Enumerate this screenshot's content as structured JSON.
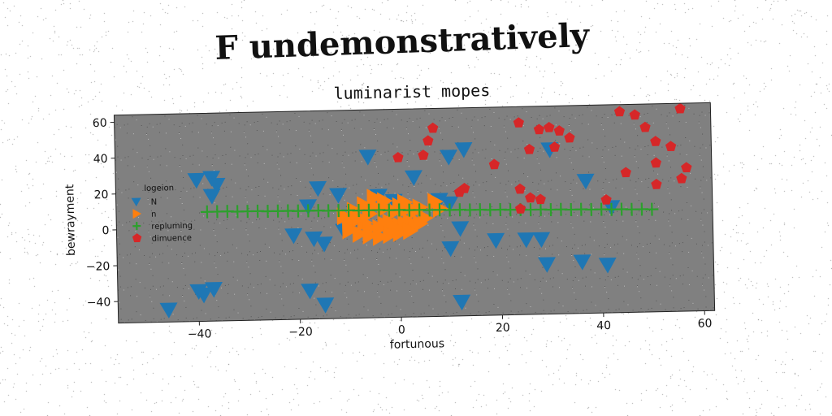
{
  "figure": {
    "suptitle": "F undemonstratively"
  },
  "chart_data": {
    "type": "scatter",
    "title": "luminarist mopes",
    "xlabel": "fortunous",
    "ylabel": "bewrayment",
    "xlim": [
      -56,
      62
    ],
    "ylim": [
      -52,
      64
    ],
    "x_ticks": [
      -40,
      -20,
      0,
      20,
      40,
      60
    ],
    "y_ticks": [
      -40,
      -20,
      0,
      20,
      40,
      60
    ],
    "grid": false,
    "background": "#808080",
    "legend": {
      "title": "logeion",
      "position": "center-left"
    },
    "series": [
      {
        "name": "N",
        "marker": "triangle-down",
        "color": "#1f77b4",
        "points": [
          [
            -6,
            38
          ],
          [
            10,
            37
          ],
          [
            13,
            41
          ],
          [
            30,
            40
          ],
          [
            -40,
            27
          ],
          [
            -37,
            28
          ],
          [
            -36,
            24
          ],
          [
            -37,
            18
          ],
          [
            -16,
            21
          ],
          [
            -12,
            17
          ],
          [
            3,
            26
          ],
          [
            -18,
            11
          ],
          [
            -4,
            16
          ],
          [
            -1,
            13
          ],
          [
            8,
            13
          ],
          [
            10,
            11
          ],
          [
            37,
            22
          ],
          [
            42,
            7
          ],
          [
            -11,
            -3
          ],
          [
            -21,
            -5
          ],
          [
            -17,
            -7
          ],
          [
            -15,
            -10
          ],
          [
            12,
            -3
          ],
          [
            19,
            -10
          ],
          [
            25,
            -10
          ],
          [
            28,
            -10
          ],
          [
            10,
            -14
          ],
          [
            29,
            -24
          ],
          [
            36,
            -23
          ],
          [
            41,
            -25
          ],
          [
            -40,
            -35
          ],
          [
            -37,
            -34
          ],
          [
            -39,
            -37
          ],
          [
            -18,
            -36
          ],
          [
            -15,
            -44
          ],
          [
            12,
            -44
          ],
          [
            -46,
            -45
          ]
        ]
      },
      {
        "name": "n",
        "marker": "triangle-right",
        "color": "#ff7f0e",
        "points": [
          [
            -10,
            1
          ],
          [
            -9,
            2
          ],
          [
            -7,
            1
          ],
          [
            -6,
            -2
          ],
          [
            -4,
            -2
          ],
          [
            -3,
            0
          ],
          [
            -2,
            1
          ],
          [
            -1,
            -3
          ],
          [
            0,
            -1
          ],
          [
            1,
            0
          ],
          [
            2,
            1
          ],
          [
            3,
            -1
          ],
          [
            4,
            0
          ],
          [
            5,
            3
          ],
          [
            -8,
            4
          ],
          [
            -6,
            6
          ],
          [
            -5,
            10
          ],
          [
            -3,
            9
          ],
          [
            -1,
            7
          ],
          [
            0,
            10
          ],
          [
            1,
            8
          ],
          [
            2,
            9
          ],
          [
            3,
            7
          ],
          [
            -10,
            -3
          ],
          [
            -8,
            -5
          ],
          [
            -6,
            -6
          ],
          [
            -4,
            -7
          ],
          [
            -2,
            -6
          ],
          [
            0,
            -5
          ],
          [
            -9,
            8
          ],
          [
            -7,
            11
          ],
          [
            -5,
            15
          ],
          [
            -3,
            13
          ],
          [
            1,
            12
          ],
          [
            4,
            9
          ],
          [
            7,
            12
          ],
          [
            8,
            8
          ],
          [
            -11,
            5
          ],
          [
            -1,
            -2
          ],
          [
            2,
            -4
          ]
        ]
      },
      {
        "name": "repluming",
        "marker": "plus",
        "color": "#2ca02c",
        "points": [
          [
            -38,
            9
          ],
          [
            -36,
            9
          ],
          [
            -34,
            9
          ],
          [
            -32,
            8.8
          ],
          [
            -30,
            8.8
          ],
          [
            -28,
            8.8
          ],
          [
            -26,
            8.6
          ],
          [
            -24,
            8.6
          ],
          [
            -22,
            8.6
          ],
          [
            -20,
            8.4
          ],
          [
            -18,
            8.4
          ],
          [
            -16,
            8.4
          ],
          [
            -14,
            8.2
          ],
          [
            -12,
            8.2
          ],
          [
            -10,
            8.2
          ],
          [
            -8,
            8
          ],
          [
            -6,
            8
          ],
          [
            -4,
            8
          ],
          [
            -2,
            7.8
          ],
          [
            0,
            7.8
          ],
          [
            2,
            7.6
          ],
          [
            4,
            7.6
          ],
          [
            6,
            7.4
          ],
          [
            8,
            7.4
          ],
          [
            10,
            7.2
          ],
          [
            12,
            7.2
          ],
          [
            14,
            7
          ],
          [
            16,
            7
          ],
          [
            18,
            6.8
          ],
          [
            20,
            6.8
          ],
          [
            22,
            6.6
          ],
          [
            24,
            6.6
          ],
          [
            26,
            6.4
          ],
          [
            28,
            6.4
          ],
          [
            30,
            6.2
          ],
          [
            32,
            6.2
          ],
          [
            34,
            6
          ],
          [
            36,
            6
          ],
          [
            38,
            5.8
          ],
          [
            40,
            5.8
          ],
          [
            42,
            5.6
          ],
          [
            44,
            5.6
          ],
          [
            46,
            5.4
          ],
          [
            48,
            5.4
          ],
          [
            50,
            5.2
          ]
        ]
      },
      {
        "name": "dimuence",
        "marker": "pentagon",
        "color": "#d62728",
        "points": [
          [
            7,
            53
          ],
          [
            6,
            46
          ],
          [
            5,
            38
          ],
          [
            0,
            37
          ],
          [
            24,
            55
          ],
          [
            26,
            40
          ],
          [
            28,
            51
          ],
          [
            30,
            52
          ],
          [
            32,
            50
          ],
          [
            34,
            46
          ],
          [
            31,
            41
          ],
          [
            19,
            32
          ],
          [
            13,
            19
          ],
          [
            12,
            17
          ],
          [
            24,
            18
          ],
          [
            26,
            13
          ],
          [
            28,
            12
          ],
          [
            24,
            7
          ],
          [
            44,
            60
          ],
          [
            47,
            58
          ],
          [
            49,
            51
          ],
          [
            51,
            43
          ],
          [
            54,
            40
          ],
          [
            51,
            31
          ],
          [
            57,
            28
          ],
          [
            56,
            22
          ],
          [
            51,
            19
          ],
          [
            45,
            26
          ],
          [
            41,
            11
          ],
          [
            56,
            61
          ]
        ]
      }
    ]
  }
}
